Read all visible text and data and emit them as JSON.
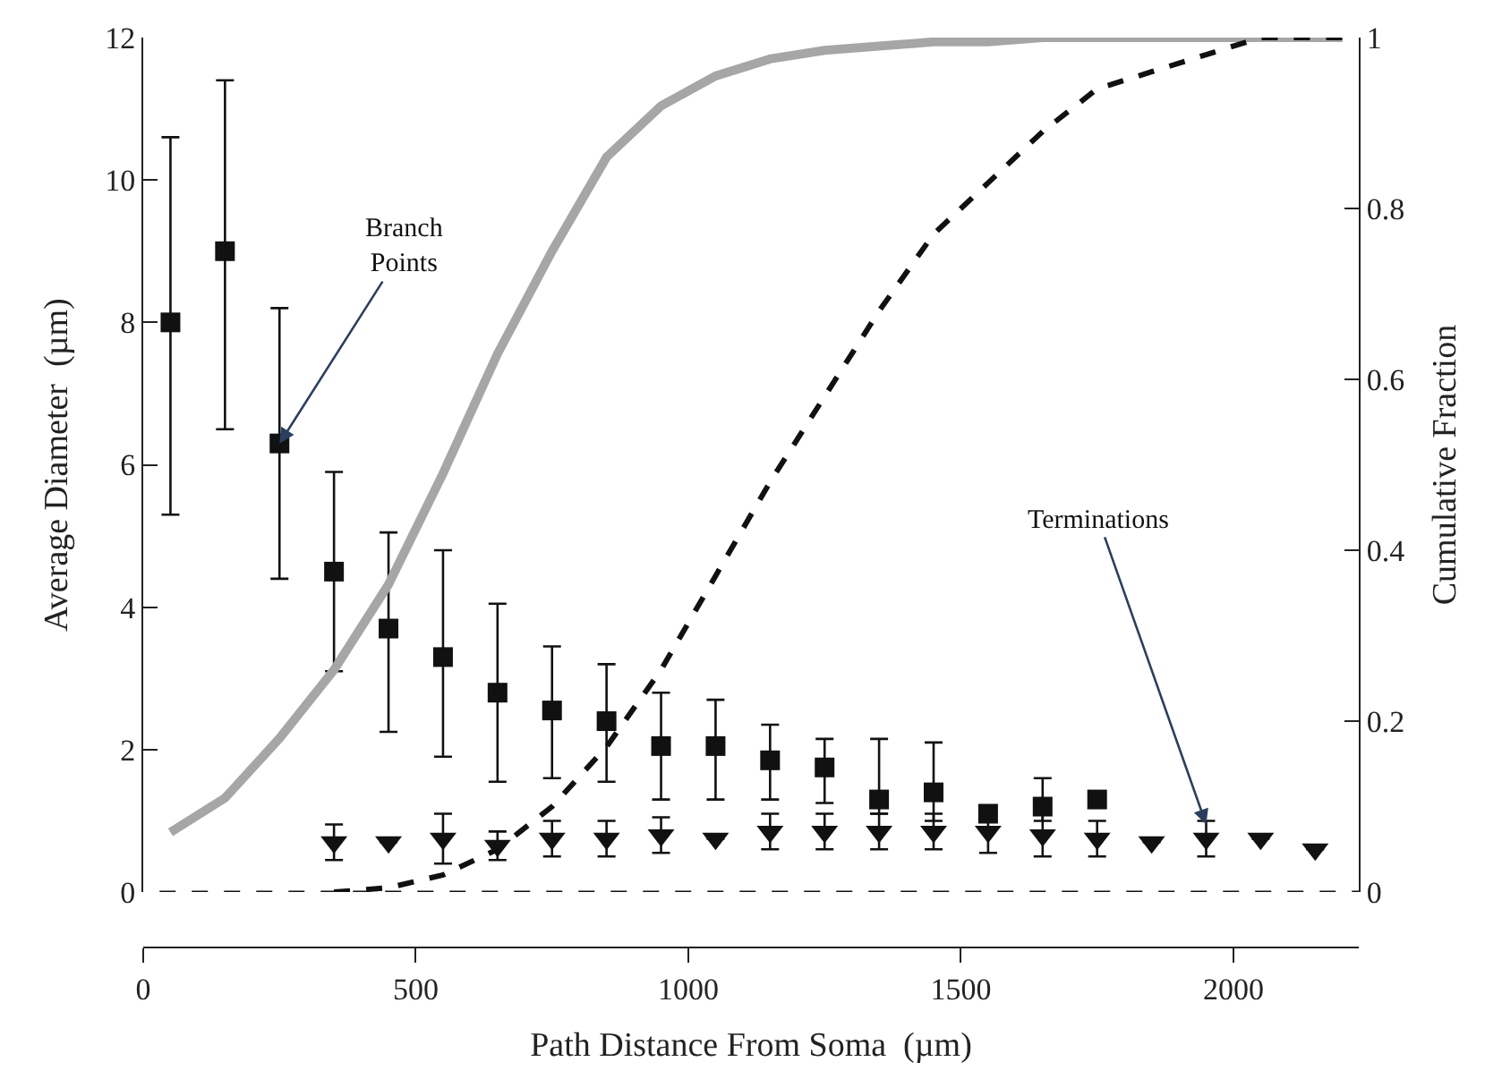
{
  "chart_data": {
    "type": "scatter",
    "xlabel": "Path Distance From Soma  (µm)",
    "ylabel": "Average Diameter  (µm)",
    "y2label": "Cumulative Fraction",
    "xlim": [
      0,
      2230
    ],
    "ylim": [
      0,
      12
    ],
    "y2lim": [
      0,
      1
    ],
    "xticks": [
      0,
      500,
      1000,
      1500,
      2000
    ],
    "yticks": [
      0,
      2,
      4,
      6,
      8,
      10,
      12
    ],
    "y2ticks": [
      0,
      0.2,
      0.4,
      0.6,
      0.8,
      1
    ],
    "series": [
      {
        "marker": "square",
        "color": "#111111",
        "x": [
          50,
          150,
          250,
          350,
          450,
          550,
          650,
          750,
          850,
          950,
          1050,
          1150,
          1250,
          1350,
          1450,
          1550,
          1650,
          1750
        ],
        "values": [
          8.0,
          9.0,
          6.3,
          4.5,
          3.7,
          3.3,
          2.8,
          2.55,
          2.4,
          2.05,
          2.05,
          1.85,
          1.75,
          1.3,
          1.4,
          1.1,
          1.2,
          1.3
        ],
        "errors": [
          [
            5.3,
            10.6
          ],
          [
            6.5,
            11.4
          ],
          [
            4.4,
            8.2
          ],
          [
            3.1,
            5.9
          ],
          [
            2.25,
            5.05
          ],
          [
            1.9,
            4.8
          ],
          [
            1.55,
            4.05
          ],
          [
            1.6,
            3.45
          ],
          [
            1.55,
            3.2
          ],
          [
            1.3,
            2.8
          ],
          [
            1.3,
            2.7
          ],
          [
            1.3,
            2.35
          ],
          [
            1.25,
            2.15
          ],
          [
            1.1,
            2.15
          ],
          [
            1.0,
            2.1
          ],
          null,
          [
            1.0,
            1.6
          ],
          null
        ]
      },
      {
        "marker": "triangle",
        "color": "#111111",
        "x": [
          350,
          450,
          550,
          650,
          750,
          850,
          950,
          1050,
          1150,
          1250,
          1350,
          1450,
          1550,
          1650,
          1750,
          1850,
          1950,
          2050,
          2150
        ],
        "values": [
          0.7,
          0.7,
          0.75,
          0.65,
          0.75,
          0.75,
          0.8,
          0.75,
          0.85,
          0.85,
          0.85,
          0.85,
          0.85,
          0.8,
          0.75,
          0.7,
          0.75,
          0.75,
          0.6
        ],
        "errors": [
          0.25,
          null,
          0.35,
          0.2,
          0.25,
          0.25,
          0.25,
          null,
          0.25,
          0.25,
          0.25,
          0.25,
          0.3,
          0.3,
          0.25,
          null,
          0.25,
          null,
          null
        ]
      },
      {
        "type": "line",
        "axis": "y2",
        "color": "#a6a6a6",
        "line_style": "solid",
        "x": [
          50,
          150,
          250,
          350,
          450,
          550,
          650,
          750,
          850,
          950,
          1050,
          1150,
          1250,
          1350,
          1450,
          1550,
          1650,
          1750,
          2200
        ],
        "values": [
          0.07,
          0.11,
          0.18,
          0.26,
          0.36,
          0.49,
          0.63,
          0.75,
          0.86,
          0.92,
          0.955,
          0.975,
          0.985,
          0.99,
          0.995,
          0.995,
          1,
          1,
          1
        ]
      },
      {
        "type": "line",
        "axis": "y2",
        "color": "#111111",
        "line_style": "dashed",
        "x": [
          350,
          450,
          550,
          650,
          750,
          850,
          950,
          1050,
          1150,
          1250,
          1350,
          1450,
          1550,
          1650,
          1750,
          1850,
          1950,
          2050,
          2200
        ],
        "values": [
          0,
          0.005,
          0.02,
          0.05,
          0.1,
          0.17,
          0.26,
          0.37,
          0.48,
          0.58,
          0.68,
          0.77,
          0.83,
          0.89,
          0.94,
          0.96,
          0.98,
          1,
          1
        ]
      }
    ],
    "ref_lines": [
      {
        "axis": "y",
        "value": 0,
        "color": "#111111",
        "line_style": "dashed"
      }
    ],
    "annotations": [
      {
        "text": "Branch Points",
        "x": 250,
        "y": 6.3
      },
      {
        "text": "Terminations",
        "x": 1950,
        "y": 0.95
      }
    ]
  }
}
